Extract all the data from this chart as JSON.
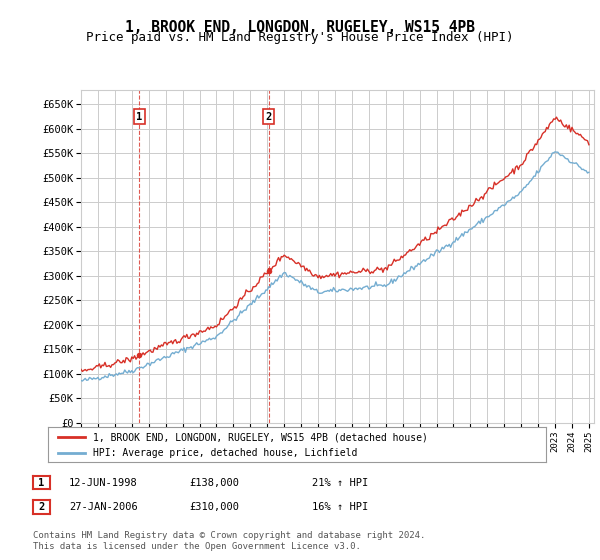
{
  "title": "1, BROOK END, LONGDON, RUGELEY, WS15 4PB",
  "subtitle": "Price paid vs. HM Land Registry's House Price Index (HPI)",
  "ylabel_ticks": [
    "£0",
    "£50K",
    "£100K",
    "£150K",
    "£200K",
    "£250K",
    "£300K",
    "£350K",
    "£400K",
    "£450K",
    "£500K",
    "£550K",
    "£600K",
    "£650K"
  ],
  "ytick_values": [
    0,
    50000,
    100000,
    150000,
    200000,
    250000,
    300000,
    350000,
    400000,
    450000,
    500000,
    550000,
    600000,
    650000
  ],
  "ylim": [
    0,
    680000
  ],
  "xtick_years": [
    1995,
    1996,
    1997,
    1998,
    1999,
    2000,
    2001,
    2002,
    2003,
    2004,
    2005,
    2006,
    2007,
    2008,
    2009,
    2010,
    2011,
    2012,
    2013,
    2014,
    2015,
    2016,
    2017,
    2018,
    2019,
    2020,
    2021,
    2022,
    2023,
    2024,
    2025
  ],
  "hpi_color": "#74add1",
  "price_color": "#d73027",
  "sale1_year": 1998.45,
  "sale1_price": 138000,
  "sale2_year": 2006.08,
  "sale2_price": 310000,
  "legend_entry1": "1, BROOK END, LONGDON, RUGELEY, WS15 4PB (detached house)",
  "legend_entry2": "HPI: Average price, detached house, Lichfield",
  "footnote1": "Contains HM Land Registry data © Crown copyright and database right 2024.",
  "footnote2": "This data is licensed under the Open Government Licence v3.0.",
  "background_color": "#ffffff",
  "grid_color": "#cccccc",
  "title_fontsize": 10.5,
  "subtitle_fontsize": 9
}
